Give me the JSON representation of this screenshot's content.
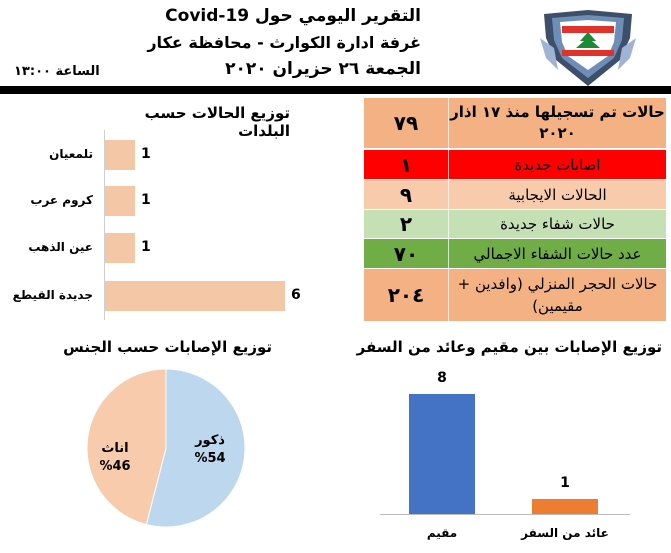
{
  "header": {
    "line1": "التقرير اليومي حول Covid-19",
    "line2": "غرفة ادارة الكوارث - محافظة عكار",
    "line3": "الجمعة ٢٦ حزيران ٢٠٢٠",
    "time": "الساعة ١٣:٠٠",
    "logo": "lebanese-cedar-shield-icon"
  },
  "stats": [
    {
      "label": "حالات تم تسجيلها منذ ١٧ اذار ٢٠٢٠",
      "value": "٧٩",
      "color": "#f4b183"
    },
    {
      "label": "اصابات جديدة",
      "value": "١",
      "color": "#ff0000"
    },
    {
      "label": "الحالات الايجابية",
      "value": "٩",
      "color": "#f8cbad"
    },
    {
      "label": "حالات شفاء جديدة",
      "value": "٢",
      "color": "#c5e0b4"
    },
    {
      "label": "عدد حالات الشفاء الاجمالي",
      "value": "٧٠",
      "color": "#70ad47"
    },
    {
      "label": "حالات الحجر المنزلي (وافدين + مقيمين)",
      "value": "٢٠٤",
      "color": "#f4b183"
    }
  ],
  "towns_chart": {
    "title": "توزيع الحالات حسب البلدات",
    "bar_color": "#f4c7a6"
  },
  "gender_chart": {
    "title": "توزيع الإصابات حسب الجنس",
    "colors": {
      "male": "#bdd7ee",
      "female": "#f8cbad"
    }
  },
  "travel_chart": {
    "title": "توزيع الإصابات بين مقيم وعائد من السفر",
    "colors": [
      "#4472c4",
      "#ed7d31"
    ]
  },
  "chart_data": [
    {
      "type": "bar",
      "orientation": "horizontal",
      "title": "توزيع الحالات حسب البلدات",
      "categories": [
        "تلمعيان",
        "كروم عرب",
        "عين الذهب",
        "جديدة القيطع"
      ],
      "values": [
        1,
        1,
        1,
        6
      ],
      "data_labels": [
        "1",
        "1",
        "1",
        "6"
      ]
    },
    {
      "type": "pie",
      "title": "توزيع الإصابات حسب الجنس",
      "labels": [
        "ذكور",
        "اناث"
      ],
      "values": [
        54,
        46
      ],
      "data_labels": [
        "%54",
        "%46"
      ]
    },
    {
      "type": "bar",
      "title": "توزيع الإصابات بين مقيم وعائد من السفر",
      "categories": [
        "مقيم",
        "عائد من السفر"
      ],
      "values": [
        8,
        1
      ],
      "data_labels": [
        "8",
        "1"
      ]
    }
  ]
}
